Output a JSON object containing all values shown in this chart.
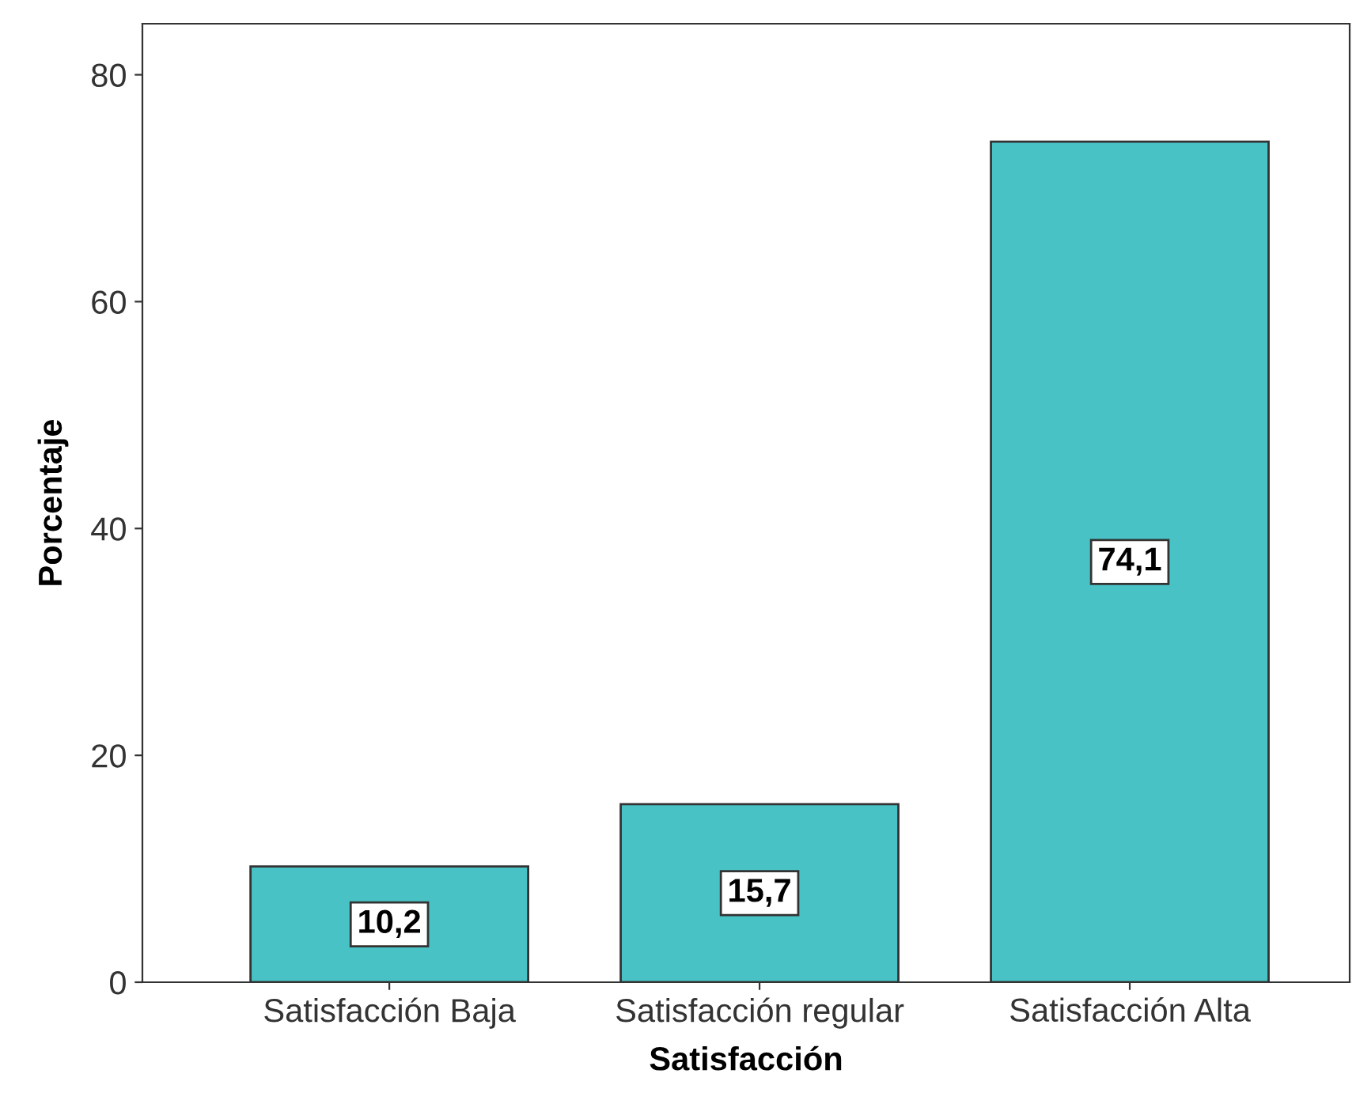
{
  "chart_data": {
    "type": "bar",
    "xlabel": "Satisfacción",
    "ylabel": "Porcentaje",
    "categories": [
      "Satisfacción Baja",
      "Satisfacción regular",
      "Satisfacción Alta"
    ],
    "values": [
      10.2,
      15.7,
      74.1
    ],
    "value_labels": [
      "10,2",
      "15,7",
      "74,1"
    ],
    "color": "#48c2c5",
    "ylim": [
      0,
      84.5
    ],
    "yticks": [
      0,
      20,
      40,
      60,
      80
    ],
    "grid": false
  }
}
